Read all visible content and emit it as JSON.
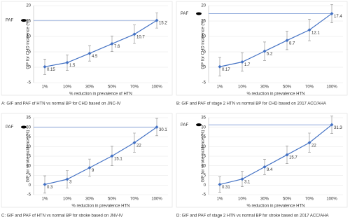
{
  "chart_data": [
    {
      "type": "line",
      "ylabel": "GIF for CHD incidence (%)",
      "xlabel": "% reduction in prevalence of HTN",
      "caption": "A: GIF and PAF of HTN vs normal BP for CHD based on JNC-IV",
      "paf_label": "PAF",
      "categories": [
        "1%",
        "10%",
        "30%",
        "50%",
        "70%",
        "100%"
      ],
      "values": [
        0.15,
        1.5,
        4.5,
        7.6,
        10.7,
        15.2
      ],
      "errors": [
        2.5,
        2.5,
        2.5,
        2.5,
        3,
        2.5
      ],
      "ylim": [
        -5,
        20
      ],
      "yticks": [
        -5,
        0,
        5,
        10,
        15,
        20
      ],
      "color": "#4472c4"
    },
    {
      "type": "line",
      "ylabel": "GIF for CHD incidence (%)",
      "xlabel": "% reduction in prevalence HTN",
      "caption": "B: GIF and PAF of stage 2 HTN vs normal BP for CHD based on 2017 ACC/AHA",
      "paf_label": "PAF",
      "categories": [
        "1%",
        "10%",
        "30%",
        "50%",
        "70%",
        "100%"
      ],
      "values": [
        0.17,
        1.7,
        5.2,
        8.7,
        12.1,
        17.4
      ],
      "errors": [
        3,
        3,
        3,
        3,
        3.5,
        3
      ],
      "ylim": [
        -5,
        20
      ],
      "yticks": [
        -5,
        0,
        5,
        10,
        15,
        20
      ],
      "color": "#4472c4"
    },
    {
      "type": "line",
      "ylabel": "GIF for stroke incidence (%)",
      "xlabel": "% reduction in prevalence HTN",
      "caption": "C: GIF and PAF of HTN vs normal BP for stroke based on JNV-IV",
      "paf_label": "PAF",
      "categories": [
        "1%",
        "10%",
        "30%",
        "50%",
        "70%",
        "100%"
      ],
      "values": [
        0.3,
        3,
        9,
        15.1,
        22,
        30.1
      ],
      "errors": [
        4.5,
        4.5,
        4.5,
        5,
        5,
        4.5
      ],
      "ylim": [
        -5,
        35
      ],
      "yticks": [
        -5,
        0,
        5,
        10,
        15,
        20,
        25,
        30,
        35
      ],
      "color": "#4472c4"
    },
    {
      "type": "line",
      "ylabel": "GIF for stroke incidence (%)",
      "xlabel": "% reduction in prevalence HTN",
      "caption": "D: GIF and PAF of stage 2 HTN vs normal BP for stroke based on 2017 ACC/AHA",
      "paf_label": "PAF",
      "categories": [
        "1%",
        "10%",
        "30%",
        "50%",
        "70%",
        "100%"
      ],
      "values": [
        0.31,
        3.1,
        9.4,
        15.7,
        22,
        31.3
      ],
      "errors": [
        4,
        4,
        4,
        4.5,
        5,
        4.5
      ],
      "ylim": [
        -5,
        35
      ],
      "yticks": [
        -5,
        0,
        5,
        10,
        15,
        20,
        25,
        30,
        35
      ],
      "color": "#4472c4"
    }
  ]
}
